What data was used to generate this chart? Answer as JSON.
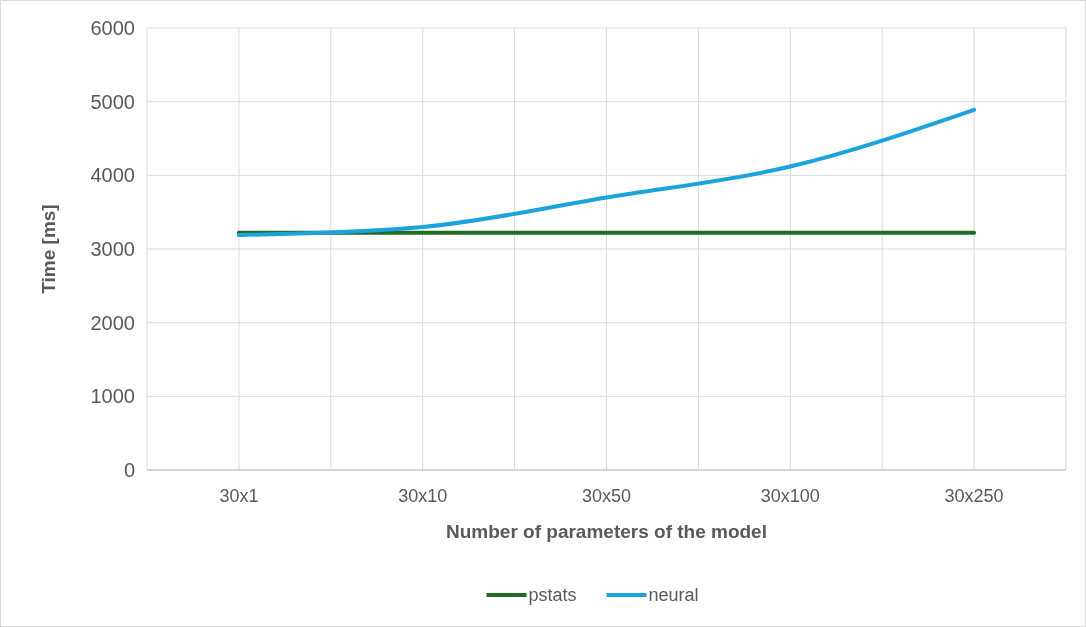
{
  "chart_data": {
    "type": "line",
    "xlabel": "Number of parameters of the model",
    "ylabel": "Time [ms]",
    "categories": [
      "30x1",
      "30x10",
      "30x50",
      "30x100",
      "30x250"
    ],
    "series": [
      {
        "name": "pstats",
        "color": "#1e6b24",
        "values": [
          3220,
          3220,
          3220,
          3220,
          3220
        ]
      },
      {
        "name": "neural",
        "color": "#1ca3dc",
        "values": [
          3190,
          3300,
          3700,
          4120,
          4890
        ]
      }
    ],
    "ylim": [
      0,
      6000
    ],
    "yticks": [
      0,
      1000,
      2000,
      3000,
      4000,
      5000,
      6000
    ],
    "grid": true,
    "legend": "bottom",
    "marker": "none",
    "line_style": "solid"
  }
}
